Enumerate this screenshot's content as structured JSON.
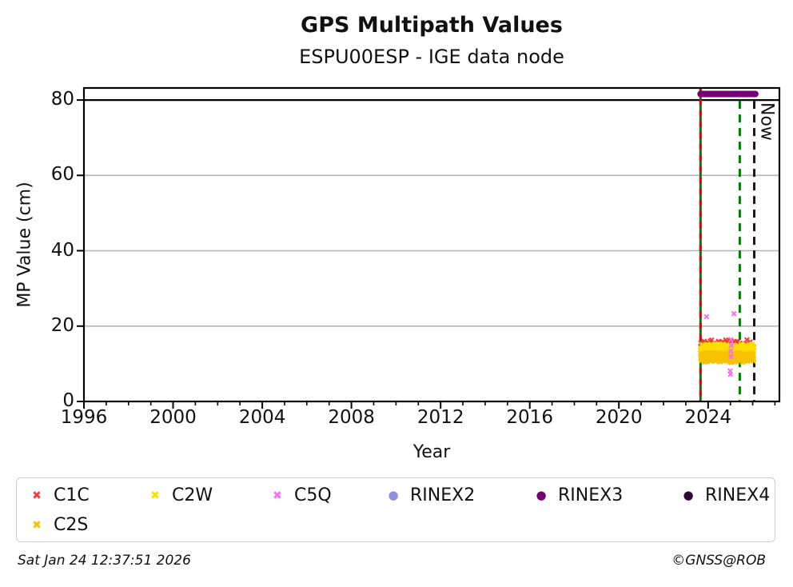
{
  "header": {
    "title": "GPS Multipath Values",
    "subtitle": "ESPU00ESP - IGE data node"
  },
  "footer": {
    "timestamp": "Sat Jan 24 12:37:51 2026",
    "credit": "©GNSS@ROB"
  },
  "legend": {
    "items": [
      {
        "label": "C1C",
        "marker": "x",
        "color": "#f23d3d"
      },
      {
        "label": "C2W",
        "marker": "x",
        "color": "#ffdd00"
      },
      {
        "label": "C5Q",
        "marker": "x",
        "color": "#f56ef5"
      },
      {
        "label": "RINEX2",
        "marker": "dot",
        "color": "#9191d9"
      },
      {
        "label": "RINEX3",
        "marker": "dot",
        "color": "#750075"
      },
      {
        "label": "RINEX4",
        "marker": "dot",
        "color": "#2e0b30"
      },
      {
        "label": "C2S",
        "marker": "x",
        "color": "#f8c200"
      }
    ]
  },
  "chart_data": {
    "type": "scatter",
    "title": "GPS Multipath Values",
    "subtitle": "ESPU00ESP - IGE data node",
    "xlabel": "Year",
    "ylabel": "MP Value (cm)",
    "xlim": [
      1996,
      2027.2
    ],
    "ylim": [
      0,
      83.2
    ],
    "xticks": [
      1996,
      2000,
      2004,
      2008,
      2012,
      2016,
      2020,
      2024
    ],
    "minor_xtick_step": 1,
    "yticks": [
      0,
      20,
      40,
      60,
      80
    ],
    "gridlines_y": [
      20,
      40,
      60
    ],
    "grid_color": "#b4b4b4",
    "threshold_line_y": 80,
    "legend_position": "bottom",
    "series": [
      {
        "name": "C1C",
        "marker": "x",
        "color": "#f23d3d",
        "band": {
          "x_start": 2023.66,
          "x_end": 2026.05,
          "y_center": 14.6,
          "y_spread": 1.9,
          "n": 260,
          "seed": 11
        }
      },
      {
        "name": "C2W",
        "marker": "x",
        "color": "#ffdd00",
        "band": {
          "x_start": 2023.66,
          "x_end": 2026.05,
          "y_center": 13.9,
          "y_spread": 1.5,
          "n": 430,
          "seed": 22
        }
      },
      {
        "name": "C2S",
        "marker": "x",
        "color": "#f8c200",
        "band": {
          "x_start": 2023.66,
          "x_end": 2026.05,
          "y_center": 11.7,
          "y_spread": 1.4,
          "n": 430,
          "seed": 33
        }
      },
      {
        "name": "C5Q",
        "marker": "x",
        "color": "#f56ef5",
        "points": [
          [
            2023.93,
            22.5
          ],
          [
            2025.16,
            23.3
          ],
          [
            2025.03,
            16.4
          ],
          [
            2025.04,
            14.9
          ],
          [
            2025.02,
            13.4
          ],
          [
            2025.03,
            11.9
          ],
          [
            2024.99,
            8.1
          ],
          [
            2025.0,
            7.2
          ]
        ]
      },
      {
        "name": "RINEX2",
        "marker": "dot",
        "color": "#9191d9",
        "points": []
      },
      {
        "name": "RINEX3",
        "marker": "dot",
        "color": "#750075",
        "bar": {
          "x_start": 2023.66,
          "x_end": 2026.12,
          "y": 81.6
        }
      },
      {
        "name": "RINEX4",
        "marker": "dot",
        "color": "#2e0b30",
        "points": []
      }
    ],
    "vlines": [
      {
        "x": 2023.66,
        "color": "#007d00",
        "style": "solid",
        "overlay_color": "#e60000"
      },
      {
        "x": 2025.42,
        "color": "#007d00",
        "style": "dashed"
      },
      {
        "x": 2026.07,
        "color": "#1a1a1a",
        "style": "dashed",
        "label": "Now"
      }
    ]
  }
}
